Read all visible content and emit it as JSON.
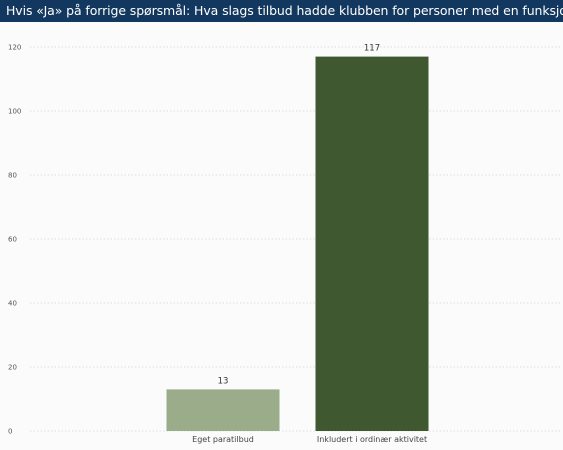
{
  "chart_data": {
    "type": "bar",
    "title": "Hvis «Ja» på forrige spørsmål: Hva slags tilbud hadde klubben for personer med en funksjonsnedsett.",
    "categories": [
      "Eget paratilbud",
      "Inkludert i ordinær aktivitet"
    ],
    "values": [
      13,
      117
    ],
    "data_labels": [
      "13",
      "117"
    ],
    "yticks": [
      0,
      20,
      40,
      60,
      80,
      100,
      120
    ],
    "ylim": [
      0,
      120
    ],
    "grid": true,
    "colors": [
      "#9aac8a",
      "#3f582f"
    ]
  }
}
